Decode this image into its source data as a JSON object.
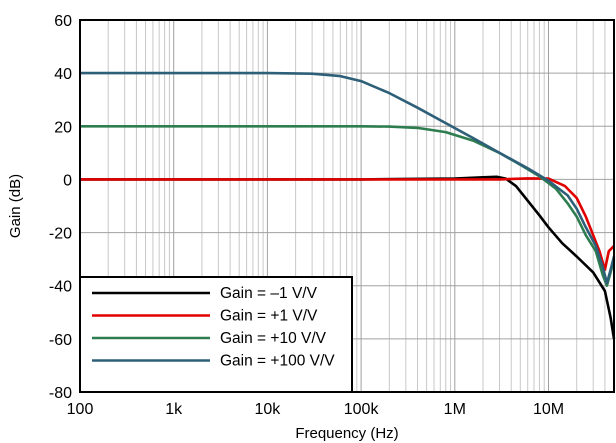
{
  "chart_data": {
    "type": "line",
    "title": "",
    "xlabel": "Frequency (Hz)",
    "ylabel": "Gain (dB)",
    "xscale": "log",
    "xlim": [
      100,
      50000000
    ],
    "ylim": [
      -80,
      60
    ],
    "x_ticks": [
      100,
      1000,
      10000,
      100000,
      1000000,
      10000000
    ],
    "x_tick_labels": [
      "100",
      "1k",
      "10k",
      "100k",
      "1M",
      "10M"
    ],
    "y_ticks": [
      -80,
      -60,
      -40,
      -20,
      0,
      20,
      40,
      60
    ],
    "y_tick_labels": [
      "-80",
      "-60",
      "-40",
      "-20",
      "0",
      "20",
      "40",
      "60"
    ],
    "grid": true,
    "legend_position": "bottom-left",
    "series": [
      {
        "name": "Gain = –1 V/V",
        "color": "#000000",
        "x": [
          100,
          100000,
          1000000,
          2000000,
          2800000,
          3500000,
          4500000,
          6000000,
          8000000,
          10000000,
          14000000,
          20000000,
          30000000,
          40000000,
          46000000,
          50000000
        ],
        "y": [
          0,
          0,
          0.3,
          0.8,
          1.0,
          0.3,
          -2.5,
          -8,
          -13.5,
          -18,
          -24,
          -29,
          -35,
          -42,
          -52,
          -60
        ]
      },
      {
        "name": "Gain = +1 V/V",
        "color": "#e00000",
        "x": [
          100,
          1000000,
          3000000,
          6000000,
          10000000,
          15000000,
          20000000,
          25000000,
          30000000,
          35000000,
          40000000,
          44000000,
          50000000
        ],
        "y": [
          0,
          0,
          0,
          0.4,
          0.3,
          -2.5,
          -7,
          -14,
          -21,
          -27,
          -34,
          -27,
          -25
        ]
      },
      {
        "name": "Gain = +10 V/V",
        "color": "#2e7d4f",
        "x": [
          100,
          100000,
          200000,
          400000,
          800000,
          1600000,
          3000000,
          5000000,
          8000000,
          12000000,
          16000000,
          20000000,
          25000000,
          32000000,
          38000000,
          42000000,
          46000000,
          50000000
        ],
        "y": [
          20,
          20,
          19.9,
          19.4,
          17.8,
          14.5,
          10,
          5.5,
          1.2,
          -3.5,
          -9,
          -14,
          -21,
          -27,
          -36,
          -40,
          -35,
          -30
        ]
      },
      {
        "name": "Gain = +100 V/V",
        "color": "#2e5f78",
        "x": [
          100,
          10000,
          30000,
          60000,
          100000,
          200000,
          400000,
          800000,
          1600000,
          3000000,
          6000000,
          10000000,
          16000000,
          20000000,
          25000000,
          32000000,
          38000000,
          42000000,
          46000000,
          50000000
        ],
        "y": [
          40,
          40,
          39.8,
          38.9,
          37,
          32.5,
          27,
          21.2,
          15.4,
          10,
          4.2,
          -0.5,
          -6,
          -11,
          -18,
          -25,
          -33,
          -39,
          -34,
          -29
        ]
      }
    ]
  }
}
